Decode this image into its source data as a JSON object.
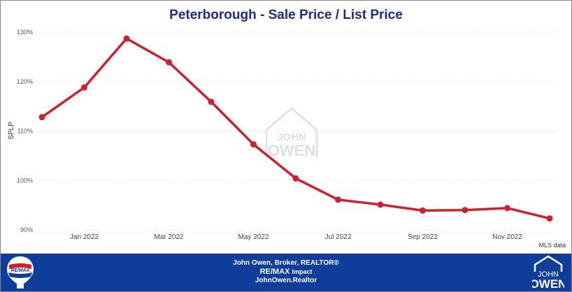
{
  "chart_data": {
    "type": "line",
    "title": "Peterborough - Sale Price / List Price",
    "ylabel": "SPLP",
    "xlabel": "",
    "ylim": [
      90,
      130
    ],
    "yticks": [
      90,
      100,
      110,
      120,
      130
    ],
    "ytick_labels": [
      "90%",
      "100%",
      "110%",
      "120%",
      "130%"
    ],
    "xtick_labels": [
      {
        "label": "Jan 2022",
        "index": 1
      },
      {
        "label": "Mar 2022",
        "index": 3
      },
      {
        "label": "May 2022",
        "index": 5
      },
      {
        "label": "Jul 2022",
        "index": 7
      },
      {
        "label": "Sep 2022",
        "index": 9
      },
      {
        "label": "Nov 2022",
        "index": 11
      }
    ],
    "series": [
      {
        "values": [
          112.8,
          118.8,
          128.7,
          123.9,
          115.9,
          107.3,
          100.4,
          96.1,
          95.1,
          93.9,
          94.0,
          94.4,
          92.3
        ]
      }
    ],
    "grid": true,
    "line_color": "#d0202e",
    "gridline_color": "#d8d8d8"
  },
  "annotations": {
    "source": "MLS data",
    "watermark_line1": "JOHN",
    "watermark_line2": "OWEN"
  },
  "footer": {
    "line1": "John Owen, Broker, REALTOR®",
    "brand": "RE/MAX",
    "brand_sub": "Impact",
    "line3": "JohnOwen.Realtor",
    "left_logo_text": "RE/MAX",
    "right_logo_line1": "JOHN",
    "right_logo_line2": "OWEN"
  },
  "colors": {
    "title": "#1d2a8f",
    "footer_bg": "#0f3d9c"
  }
}
